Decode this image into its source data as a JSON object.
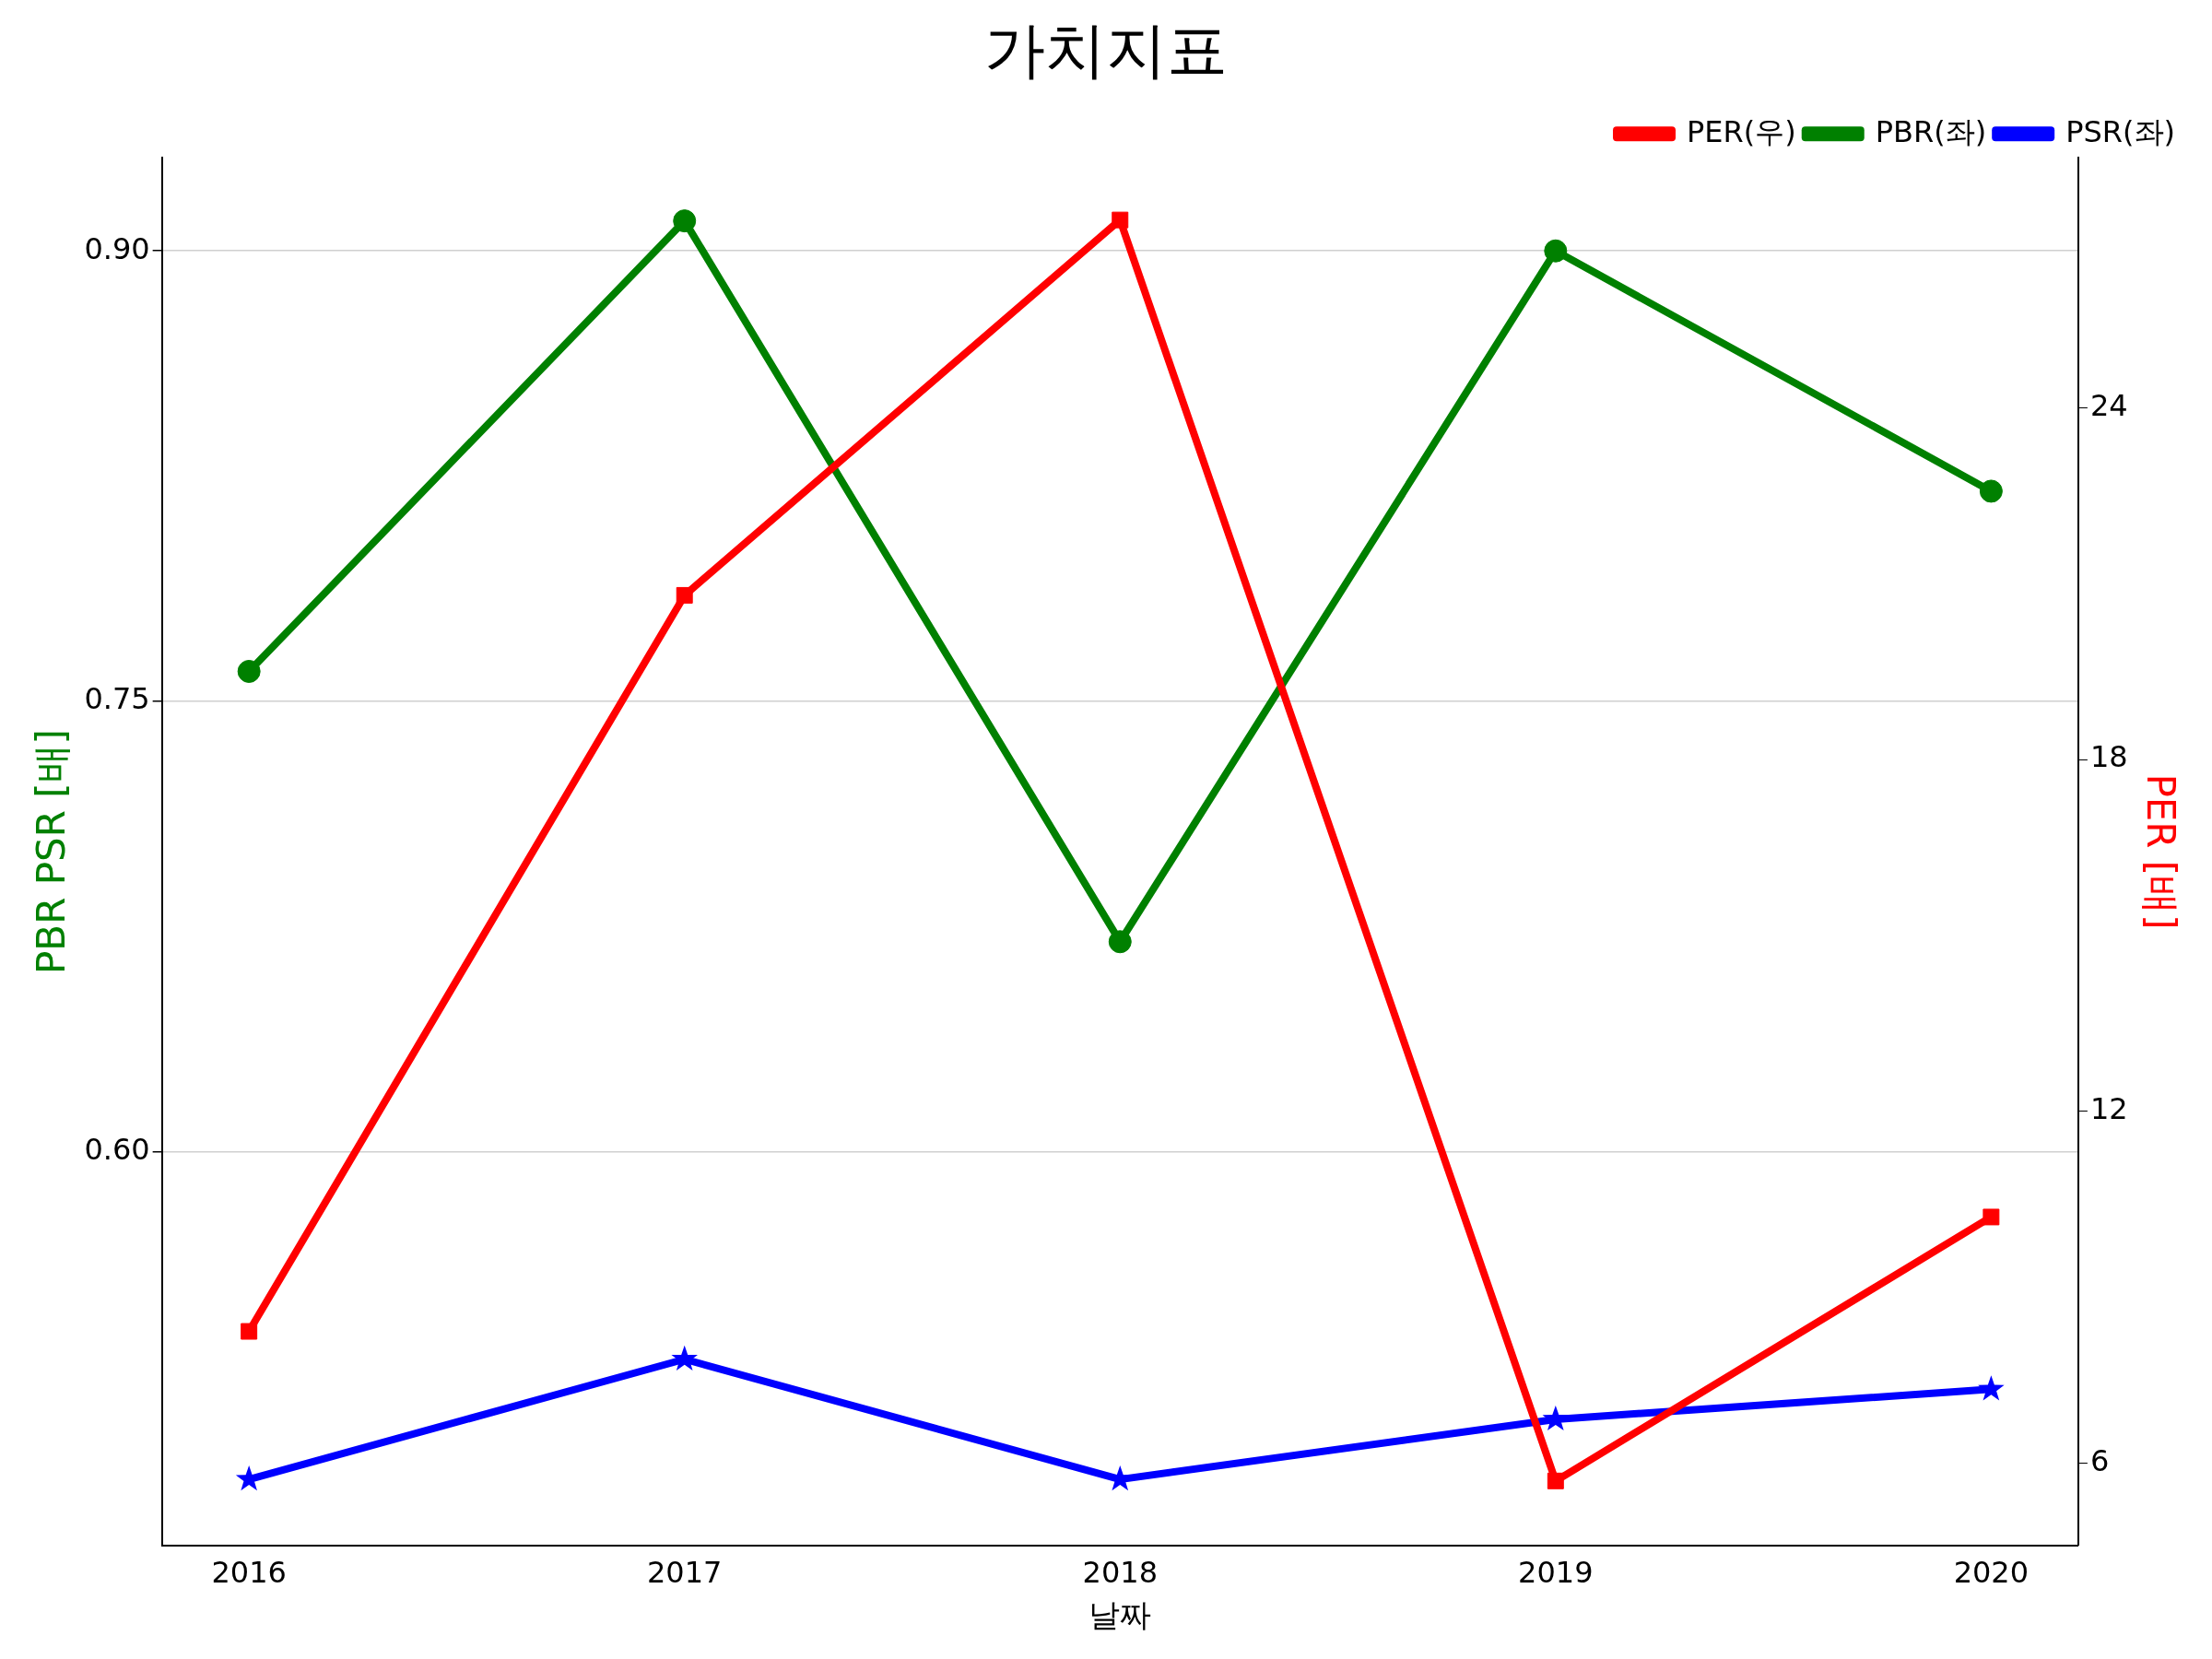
{
  "chart_data": {
    "type": "line",
    "title": "가치지표",
    "xlabel": "날짜",
    "ylabel": "PBR PSR [배]",
    "y2label": "PER [배]",
    "x": [
      2016,
      2017,
      2018,
      2019,
      2020
    ],
    "xlim": [
      2015.8,
      2020.2
    ],
    "xticks": [
      2016,
      2017,
      2018,
      2019,
      2020
    ],
    "ylim": [
      0.469,
      0.931
    ],
    "yticks": [
      {
        "value": 0.6,
        "label": "0.60"
      },
      {
        "value": 0.75,
        "label": "0.75"
      },
      {
        "value": 0.9,
        "label": "0.90"
      }
    ],
    "y2lim": [
      4.6,
      28.26
    ],
    "y2ticks": [
      6,
      12,
      18,
      24
    ],
    "series": [
      {
        "name": "PER(우)",
        "color": "#ff0000",
        "axis": "y2",
        "marker": "square",
        "values": [
          8.25,
          20.8,
          27.2,
          5.7,
          10.2
        ]
      },
      {
        "name": "PBR(좌)",
        "color": "#008000",
        "axis": "y",
        "marker": "circle",
        "values": [
          0.76,
          0.91,
          0.67,
          0.9,
          0.82
        ]
      },
      {
        "name": "PSR(좌)",
        "color": "#0000ff",
        "axis": "y",
        "marker": "star",
        "values": [
          0.491,
          0.531,
          0.491,
          0.511,
          0.521
        ]
      }
    ],
    "grid": "y",
    "legend": "top right",
    "line_style": "solid"
  }
}
